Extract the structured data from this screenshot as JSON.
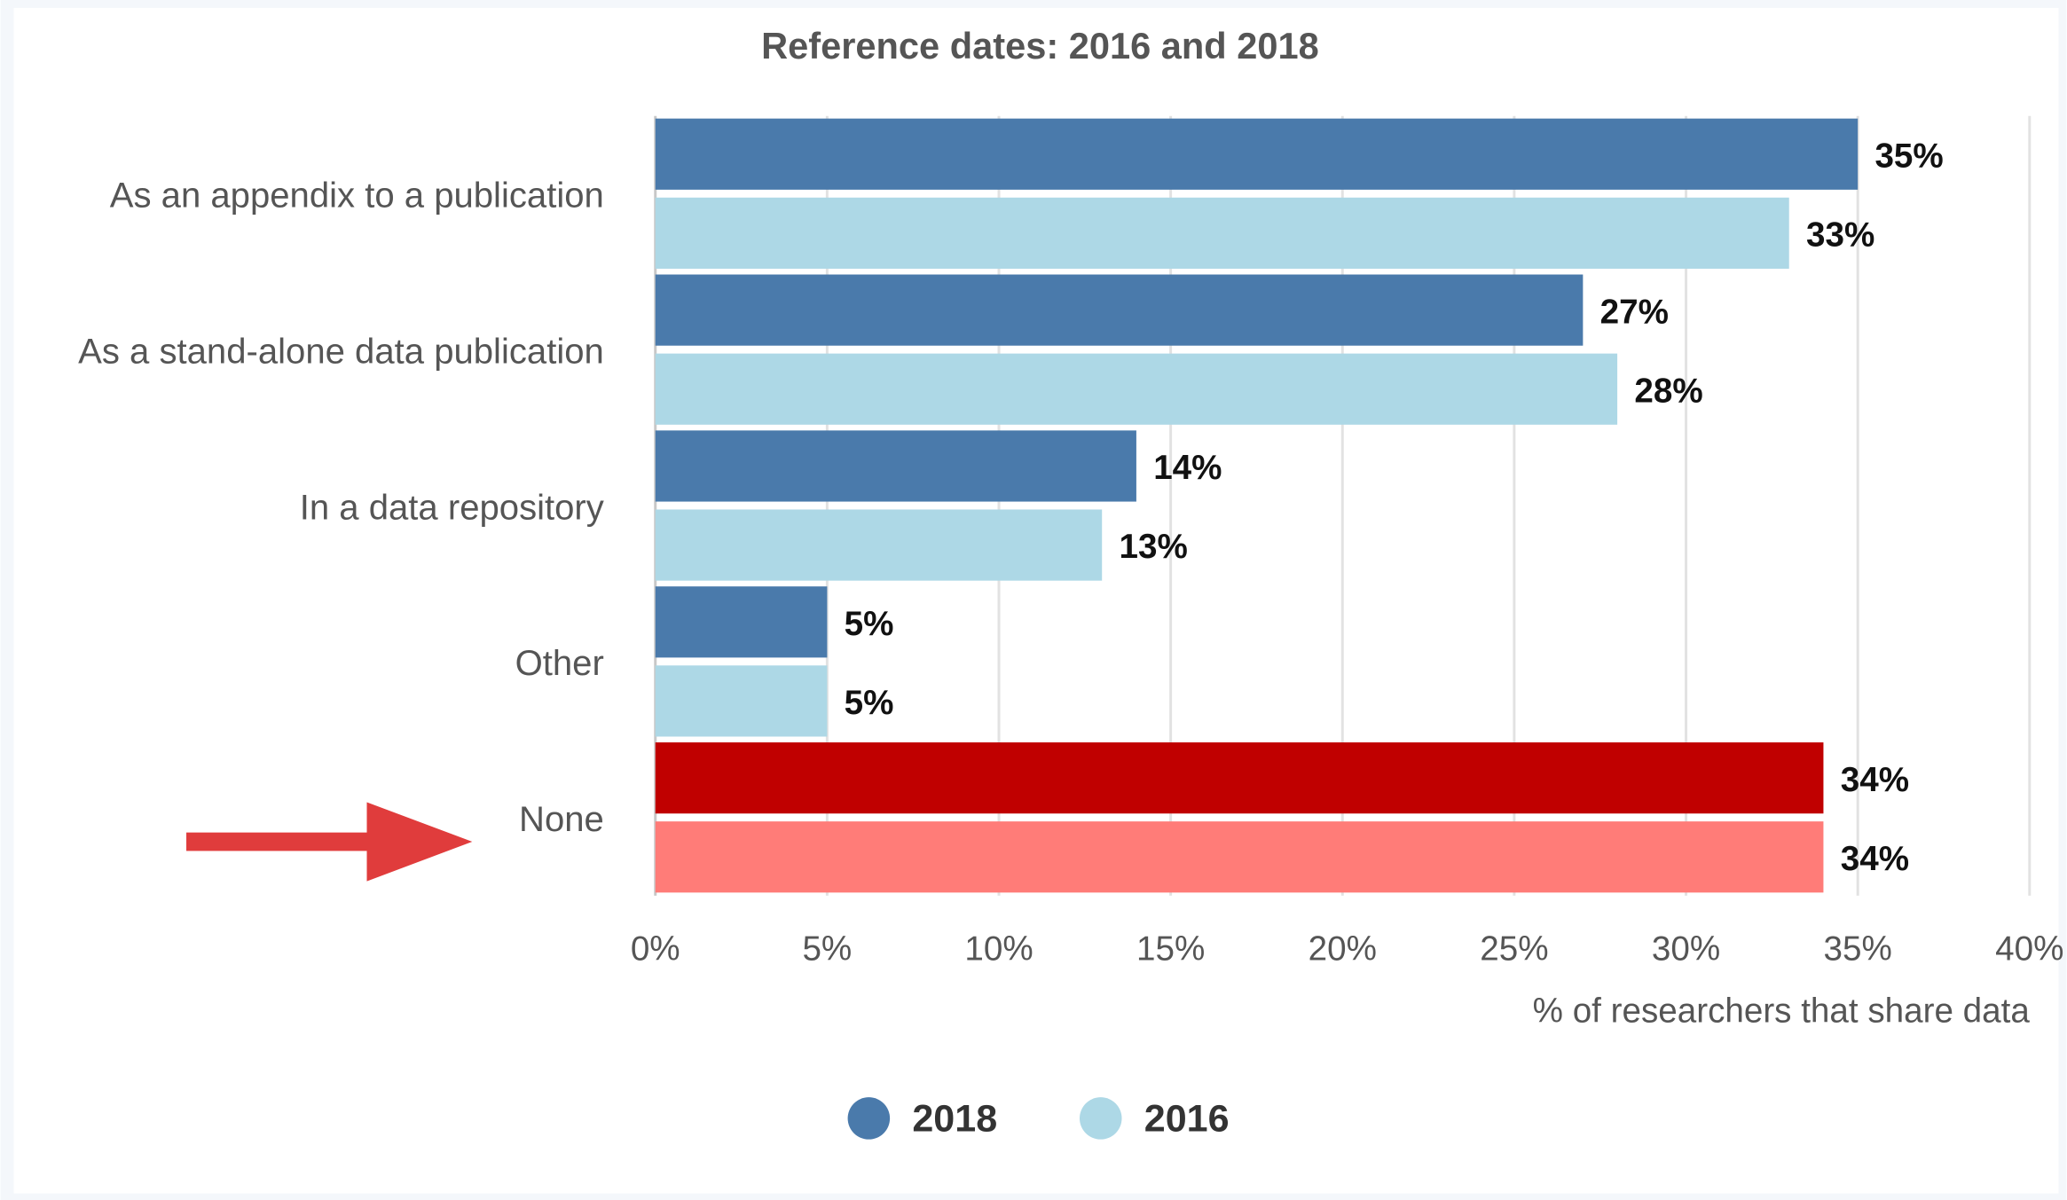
{
  "chart_data": {
    "type": "bar",
    "orientation": "horizontal",
    "title": "Reference dates: 2016 and 2018",
    "xlabel": "% of researchers that share data",
    "categories": [
      "As an appendix to a publication",
      "As a stand-alone data publication",
      "In a data repository",
      "Other",
      "None"
    ],
    "series": [
      {
        "name": "2018",
        "color": "#4a7aab",
        "colors": [
          "#4a7aab",
          "#4a7aab",
          "#4a7aab",
          "#4a7aab",
          "#c00000"
        ],
        "values": [
          35,
          27,
          14,
          5,
          34
        ],
        "value_labels": [
          "35%",
          "27%",
          "14%",
          "5%",
          "34%"
        ]
      },
      {
        "name": "2016",
        "color": "#add8e6",
        "colors": [
          "#add8e6",
          "#add8e6",
          "#add8e6",
          "#add8e6",
          "#ff7c78"
        ],
        "values": [
          33,
          28,
          13,
          5,
          34
        ],
        "value_labels": [
          "33%",
          "28%",
          "13%",
          "5%",
          "34%"
        ]
      }
    ],
    "xlim": [
      0,
      40
    ],
    "xticks": [
      {
        "value": 0,
        "label": "0%"
      },
      {
        "value": 5,
        "label": "5%"
      },
      {
        "value": 10,
        "label": "10%"
      },
      {
        "value": 15,
        "label": "15%"
      },
      {
        "value": 20,
        "label": "20%"
      },
      {
        "value": 25,
        "label": "25%"
      },
      {
        "value": 30,
        "label": "30%"
      },
      {
        "value": 35,
        "label": "35%"
      },
      {
        "value": 40,
        "label": "40%"
      }
    ],
    "grid": true,
    "legend": "bottom"
  }
}
